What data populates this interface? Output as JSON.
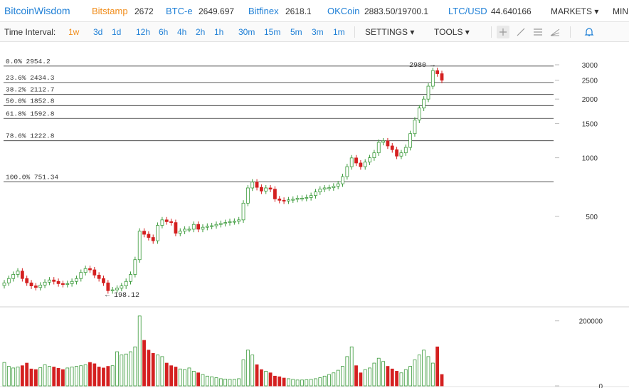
{
  "topbar": {
    "logo": "BitcoinWisdom",
    "tickers": [
      {
        "exchange": "Bitstamp",
        "price": "2672",
        "color": "#f08c1a"
      },
      {
        "exchange": "BTC-e",
        "price": "2649.697",
        "color": "#1e7fd6"
      },
      {
        "exchange": "Bitfinex",
        "price": "2618.1",
        "color": "#1e7fd6"
      },
      {
        "exchange": "OKCoin",
        "price": "2883.50/19700.1",
        "color": "#1e7fd6"
      },
      {
        "exchange": "LTC/USD",
        "price": "44.640166",
        "color": "#1e7fd6"
      }
    ],
    "markets_label": "MARKETS ▾",
    "mining_label": "MIN"
  },
  "intervals": {
    "label": "Time Interval:",
    "items": [
      "1w",
      "3d",
      "1d",
      "12h",
      "6h",
      "4h",
      "2h",
      "1h",
      "30m",
      "15m",
      "5m",
      "3m",
      "1m"
    ],
    "active": "1w"
  },
  "menus": {
    "settings": "SETTINGS ▾",
    "tools": "TOOLS ▾"
  },
  "tools": [
    "crosshair-icon",
    "line-icon",
    "fib-icon",
    "ray-icon",
    "alert-bell-icon"
  ],
  "chart_data": {
    "type": "candlestick",
    "price_axis": {
      "ticks": [
        "3000",
        "2500",
        "2000",
        "1500",
        "1000",
        "500"
      ],
      "scale": "log"
    },
    "volume_axis": {
      "ticks": [
        "200000",
        "0"
      ]
    },
    "fibonacci_levels": [
      {
        "label": "0.0% 2954.2",
        "value": 2954.2
      },
      {
        "label": "23.6% 2434.3",
        "value": 2434.3
      },
      {
        "label": "38.2% 2112.7",
        "value": 2112.7
      },
      {
        "label": "50.0% 1852.8",
        "value": 1852.8
      },
      {
        "label": "61.8% 1592.8",
        "value": 1592.8
      },
      {
        "label": "78.6% 1222.8",
        "value": 1222.8
      },
      {
        "label": "100.0% 751.34",
        "value": 751.34
      }
    ],
    "annotations": {
      "high": "2980 →",
      "low": "← 198.12"
    },
    "colors": {
      "up": "#3a9a3a",
      "down": "#d42020",
      "grid": "#333333"
    },
    "closes": [
      228,
      240,
      252,
      262,
      240,
      228,
      220,
      216,
      222,
      230,
      236,
      232,
      226,
      224,
      226,
      232,
      240,
      258,
      270,
      266,
      250,
      240,
      228,
      208,
      210,
      214,
      220,
      232,
      252,
      300,
      420,
      405,
      390,
      375,
      450,
      480,
      470,
      465,
      410,
      420,
      430,
      430,
      455,
      430,
      440,
      445,
      448,
      455,
      460,
      465,
      470,
      472,
      480,
      585,
      700,
      750,
      705,
      675,
      700,
      690,
      615,
      605,
      600,
      608,
      612,
      620,
      620,
      625,
      640,
      668,
      690,
      700,
      702,
      715,
      735,
      800,
      900,
      998,
      940,
      900,
      950,
      1000,
      1060,
      1200,
      1220,
      1150,
      1100,
      1020,
      1060,
      1130,
      1330,
      1560,
      1800,
      2000,
      2330,
      2800,
      2700,
      2500
    ],
    "volumes": [
      72000,
      60000,
      55000,
      58000,
      62000,
      70000,
      52000,
      50000,
      56000,
      65000,
      60000,
      58000,
      54000,
      50000,
      55000,
      58000,
      60000,
      62000,
      65000,
      72000,
      68000,
      58000,
      55000,
      60000,
      62000,
      105000,
      95000,
      98000,
      105000,
      120000,
      215000,
      140000,
      110000,
      100000,
      95000,
      90000,
      70000,
      62000,
      58000,
      52000,
      50000,
      55000,
      45000,
      40000,
      35000,
      30000,
      28000,
      25000,
      22000,
      21000,
      20000,
      20000,
      22000,
      80000,
      110000,
      95000,
      65000,
      50000,
      45000,
      40000,
      30000,
      28000,
      24000,
      22000,
      20000,
      18000,
      18000,
      19000,
      20000,
      22000,
      25000,
      30000,
      35000,
      40000,
      48000,
      60000,
      90000,
      120000,
      62000,
      40000,
      50000,
      55000,
      70000,
      85000,
      75000,
      60000,
      52000,
      45000,
      40000,
      50000,
      60000,
      80000,
      95000,
      110000,
      90000,
      70000,
      120000,
      35000
    ]
  }
}
